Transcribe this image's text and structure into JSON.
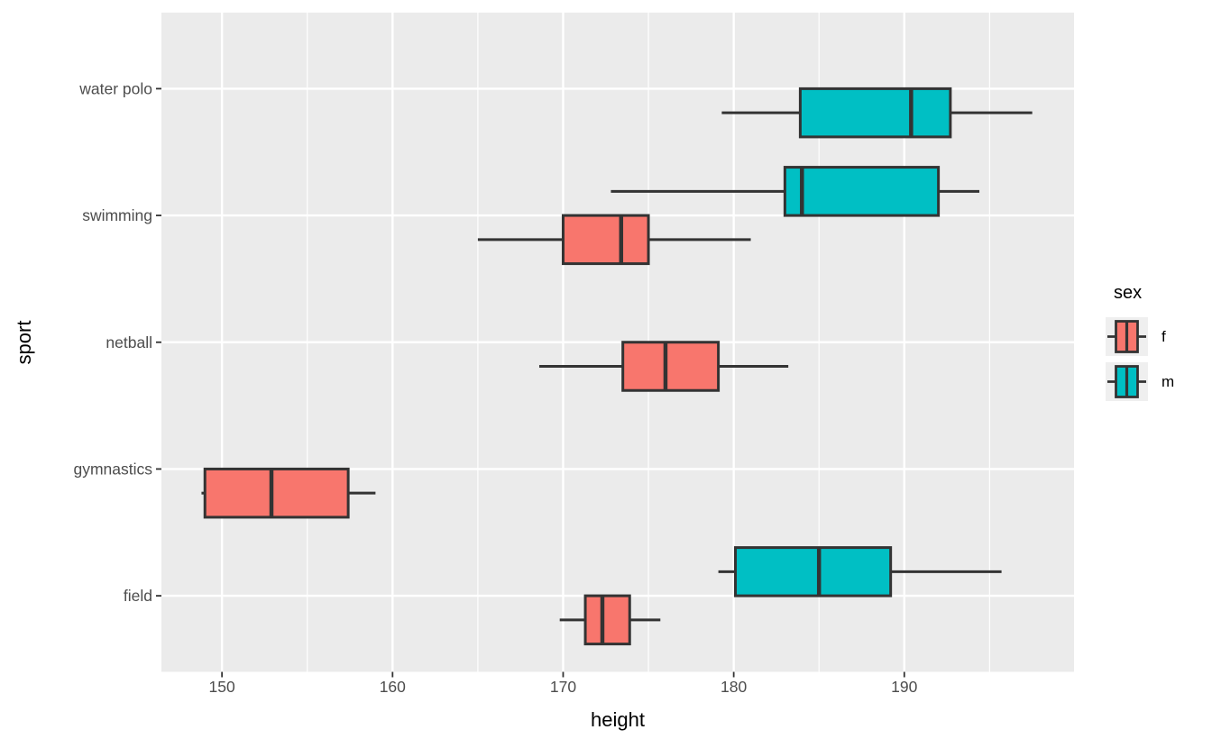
{
  "figure": {
    "background": "#FFFFFF",
    "panel_background": "#EBEBEB",
    "gridline_color": "#FFFFFF",
    "outline_color": "#333333",
    "tick_mark_color": "#333333",
    "axis_text_color": "#4D4D4D",
    "axis_title_color": "#000000",
    "legend_key_background": "#EFEFEF"
  },
  "axes": {
    "x_title": "height",
    "y_title": "sport",
    "x_tick_labels": [
      "150",
      "160",
      "170",
      "180",
      "190"
    ],
    "y_tick_labels": [
      "water polo",
      "swimming",
      "netball",
      "gymnastics",
      "field"
    ]
  },
  "legend": {
    "title": "sex",
    "entries": [
      {
        "label": "f",
        "color": "#F8766D"
      },
      {
        "label": "m",
        "color": "#00BFC4"
      }
    ]
  },
  "chart_data": {
    "type": "boxplot",
    "orientation": "horizontal",
    "title": "",
    "xlabel": "height",
    "ylabel": "sport",
    "x_ticks": [
      150,
      160,
      170,
      180,
      190
    ],
    "x_minor_gridlines": [
      155,
      165,
      175,
      185,
      195
    ],
    "xlim": [
      146.5,
      200
    ],
    "categories_top_to_bottom": [
      "water polo",
      "swimming",
      "netball",
      "gymnastics",
      "field"
    ],
    "legend_title": "sex",
    "legend_position": "right",
    "grid": "white major and minor vertical gridlines, white major horizontal gridlines on gray panel",
    "series": [
      {
        "sport": "water polo",
        "sex": "m",
        "slot": "lower",
        "whisker_low": 179.3,
        "q1": 183.9,
        "median": 190.4,
        "q3": 192.7,
        "whisker_high": 197.5
      },
      {
        "sport": "swimming",
        "sex": "m",
        "slot": "upper",
        "whisker_low": 172.8,
        "q1": 183.0,
        "median": 184.0,
        "q3": 192.0,
        "whisker_high": 194.4
      },
      {
        "sport": "swimming",
        "sex": "f",
        "slot": "lower",
        "whisker_low": 165.0,
        "q1": 170.0,
        "median": 173.4,
        "q3": 175.0,
        "whisker_high": 181.0
      },
      {
        "sport": "netball",
        "sex": "f",
        "slot": "lower",
        "whisker_low": 168.6,
        "q1": 173.5,
        "median": 176.0,
        "q3": 179.1,
        "whisker_high": 183.2
      },
      {
        "sport": "gymnastics",
        "sex": "f",
        "slot": "lower",
        "whisker_low": 148.8,
        "q1": 149.0,
        "median": 152.9,
        "q3": 157.4,
        "whisker_high": 159.0
      },
      {
        "sport": "field",
        "sex": "m",
        "slot": "upper",
        "whisker_low": 179.1,
        "q1": 180.1,
        "median": 185.0,
        "q3": 189.2,
        "whisker_high": 195.7
      },
      {
        "sport": "field",
        "sex": "f",
        "slot": "lower",
        "whisker_low": 169.8,
        "q1": 171.3,
        "median": 172.3,
        "q3": 173.9,
        "whisker_high": 175.7
      }
    ]
  }
}
